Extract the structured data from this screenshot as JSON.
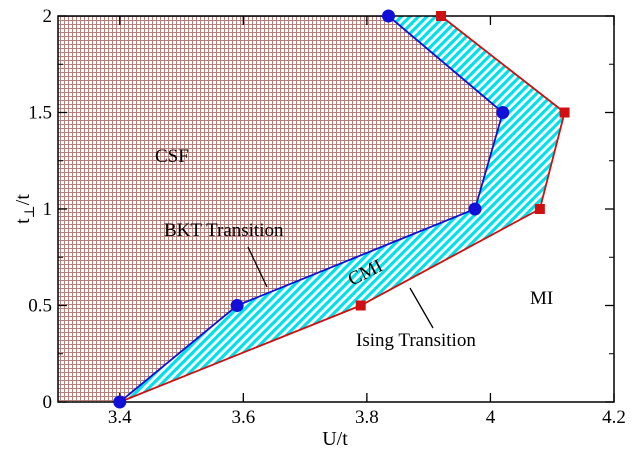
{
  "chart_data": {
    "type": "line",
    "xlabel": "U/t",
    "ylabel_main": "t",
    "ylabel_sub": "⊥",
    "ylabel_rest": "/t",
    "xlim": [
      3.3,
      4.2
    ],
    "ylim": [
      0,
      2
    ],
    "xticks": [
      3.4,
      3.6,
      3.8,
      4.0,
      4.2
    ],
    "xtick_labels": [
      "3.4",
      "3.6",
      "3.8",
      "4",
      "4.2"
    ],
    "yticks": [
      0,
      0.5,
      1.0,
      1.5,
      2.0
    ],
    "ytick_labels": [
      "0",
      "0.5",
      "1",
      "1.5",
      "2"
    ],
    "grid": false,
    "series": [
      {
        "name": "BKT Transition",
        "color": "#1010d8",
        "marker": "circle",
        "x": [
          3.4,
          3.59,
          3.975,
          4.02,
          3.835
        ],
        "y": [
          0,
          0.5,
          1.0,
          1.5,
          2.0
        ]
      },
      {
        "name": "Ising Transition",
        "color": "#d01010",
        "marker": "square",
        "x": [
          3.4,
          3.79,
          4.08,
          4.12,
          3.92
        ],
        "y": [
          0,
          0.5,
          1.0,
          1.5,
          2.0
        ]
      }
    ],
    "regions": {
      "csf": "CSF",
      "cmi": "CMI",
      "mi": "MI"
    },
    "annotations": {
      "bkt": "BKT Transition",
      "ising": "Ising Transition"
    },
    "colors": {
      "csf_fill": "#b8807a",
      "cmi_fill": "#00e0e8",
      "bkt_line": "#1010d8",
      "ising_line": "#d01010"
    }
  }
}
